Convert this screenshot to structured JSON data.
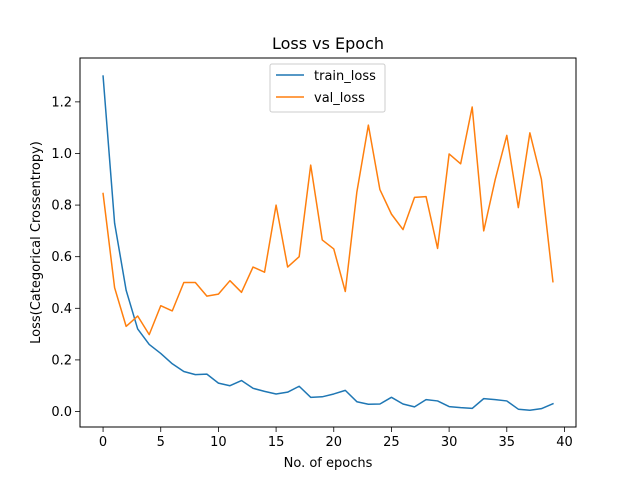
{
  "chart_data": {
    "type": "line",
    "title": "Loss vs Epoch",
    "xlabel": "No. of epochs",
    "ylabel": "Loss(Categorical Crossentropy)",
    "xlim": [
      -2,
      41
    ],
    "ylim": [
      -0.06,
      1.37
    ],
    "xticks": [
      0,
      5,
      10,
      15,
      20,
      25,
      30,
      35,
      40
    ],
    "yticks": [
      0.0,
      0.2,
      0.4,
      0.6,
      0.8,
      1.0,
      1.2
    ],
    "ytick_labels": [
      "0.0",
      "0.2",
      "0.4",
      "0.6",
      "0.8",
      "1.0",
      "1.2"
    ],
    "grid": false,
    "legend_position": "top-center",
    "x": [
      0,
      1,
      2,
      3,
      4,
      5,
      6,
      7,
      8,
      9,
      10,
      11,
      12,
      13,
      14,
      15,
      16,
      17,
      18,
      19,
      20,
      21,
      22,
      23,
      24,
      25,
      26,
      27,
      28,
      29,
      30,
      31,
      32,
      33,
      34,
      35,
      36,
      37,
      38,
      39
    ],
    "series": [
      {
        "name": "train_loss",
        "color": "#1f77b4",
        "values": [
          1.3,
          0.73,
          0.47,
          0.32,
          0.26,
          0.225,
          0.185,
          0.155,
          0.143,
          0.145,
          0.11,
          0.1,
          0.12,
          0.09,
          0.078,
          0.068,
          0.075,
          0.098,
          0.055,
          0.057,
          0.068,
          0.082,
          0.038,
          0.028,
          0.029,
          0.055,
          0.029,
          0.018,
          0.046,
          0.041,
          0.019,
          0.015,
          0.012,
          0.05,
          0.046,
          0.041,
          0.009,
          0.005,
          0.011,
          0.03
        ]
      },
      {
        "name": "val_loss",
        "color": "#ff7f0e",
        "values": [
          0.845,
          0.48,
          0.33,
          0.37,
          0.298,
          0.41,
          0.39,
          0.5,
          0.5,
          0.447,
          0.455,
          0.507,
          0.462,
          0.56,
          0.54,
          0.8,
          0.56,
          0.6,
          0.955,
          0.665,
          0.63,
          0.465,
          0.85,
          1.11,
          0.86,
          0.765,
          0.705,
          0.83,
          0.833,
          0.632,
          0.998,
          0.96,
          1.18,
          0.7,
          0.9,
          1.07,
          0.79,
          1.08,
          0.9,
          0.503
        ]
      }
    ]
  }
}
